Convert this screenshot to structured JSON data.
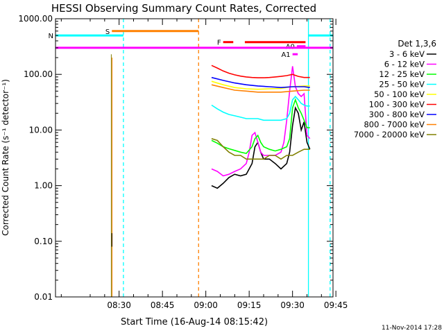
{
  "chart_data": {
    "type": "line",
    "title": "HESSI Observing Summary Count Rates, Corrected",
    "xlabel": "Start Time (16-Aug-14 08:15:42)",
    "ylabel": "Corrected Count Rate (s⁻¹ detector⁻¹)",
    "yscale": "log",
    "ylim": [
      0.01,
      1000
    ],
    "xlim_minutes": [
      8.0,
      104.0
    ],
    "yticks": [
      {
        "value": 0.01,
        "label": "0.01"
      },
      {
        "value": 0.1,
        "label": "0.10"
      },
      {
        "value": 1,
        "label": "1.00"
      },
      {
        "value": 10,
        "label": "10.00"
      },
      {
        "value": 100,
        "label": "100.00"
      },
      {
        "value": 1000,
        "label": "1000.00"
      }
    ],
    "xticks": [
      {
        "value": 30,
        "label": "08:30"
      },
      {
        "value": 45,
        "label": "08:45"
      },
      {
        "value": 60,
        "label": "09:00"
      },
      {
        "value": 75,
        "label": "09:15"
      },
      {
        "value": 90,
        "label": "09:30"
      },
      {
        "value": 105,
        "label": "09:45"
      }
    ],
    "legend": {
      "title": "Det 1,3,6",
      "position": "right"
    },
    "series": [
      {
        "name": "3 - 6 keV",
        "color": "#000000",
        "x": [
          62,
          64,
          66,
          68,
          70,
          72,
          74,
          76,
          77,
          78,
          79,
          80,
          82,
          84,
          86,
          88,
          89,
          90,
          91,
          92,
          93,
          94,
          95,
          96
        ],
        "y": [
          1.0,
          0.9,
          1.1,
          1.4,
          1.6,
          1.5,
          1.6,
          2.5,
          5.0,
          6.0,
          4.0,
          3.0,
          3.0,
          2.5,
          2.0,
          2.5,
          4.0,
          12.0,
          25.0,
          20.0,
          10.0,
          14.0,
          6.0,
          4.5
        ]
      },
      {
        "name": "6 - 12 keV",
        "color": "#ff00ff",
        "x": [
          62,
          64,
          66,
          68,
          70,
          72,
          74,
          75,
          76,
          77,
          78,
          79,
          80,
          82,
          84,
          86,
          87,
          88,
          89,
          90,
          91,
          92,
          93,
          94,
          95,
          96
        ],
        "y": [
          2.0,
          1.8,
          1.5,
          1.6,
          1.8,
          2.0,
          2.5,
          4.0,
          8.0,
          9.0,
          6.0,
          4.0,
          3.5,
          3.5,
          3.5,
          4.0,
          6.0,
          15.0,
          50.0,
          140.0,
          60.0,
          45.0,
          40.0,
          45.0,
          8.0,
          7.0
        ]
      },
      {
        "name": "12 - 25 keV",
        "color": "#00ff00",
        "x": [
          62,
          64,
          66,
          68,
          70,
          72,
          74,
          76,
          77,
          78,
          79,
          80,
          82,
          84,
          86,
          88,
          89,
          90,
          91,
          92,
          93,
          94,
          95,
          96
        ],
        "y": [
          6.5,
          5.8,
          5.0,
          4.6,
          4.3,
          4.0,
          3.8,
          5.0,
          7.0,
          8.0,
          6.0,
          5.0,
          4.5,
          4.2,
          4.5,
          5.0,
          7.0,
          25.0,
          35.0,
          25.0,
          20.0,
          15.0,
          11.0,
          11.0
        ]
      },
      {
        "name": "25 - 50 keV",
        "color": "#00ffff",
        "x": [
          62,
          64,
          66,
          68,
          70,
          72,
          74,
          76,
          78,
          80,
          82,
          84,
          86,
          88,
          89,
          90,
          91,
          92,
          93,
          94,
          95,
          96
        ],
        "y": [
          28,
          24,
          21,
          19,
          18,
          17,
          16,
          16,
          16,
          15,
          15,
          15,
          15,
          16,
          20,
          35,
          40,
          35,
          30,
          28,
          27,
          27
        ]
      },
      {
        "name": "50 - 100 keV",
        "color": "#ffff00",
        "x": [
          62,
          66,
          70,
          74,
          78,
          82,
          86,
          90,
          94,
          96
        ],
        "y": [
          75,
          65,
          58,
          55,
          54,
          55,
          56,
          60,
          62,
          62
        ]
      },
      {
        "name": "100 - 300 keV",
        "color": "#ff0000",
        "x": [
          62,
          64,
          66,
          68,
          70,
          72,
          74,
          76,
          78,
          80,
          82,
          84,
          86,
          88,
          90,
          92,
          94,
          96
        ],
        "y": [
          145,
          130,
          115,
          105,
          98,
          93,
          90,
          88,
          87,
          87,
          88,
          90,
          92,
          95,
          100,
          92,
          88,
          88
        ]
      },
      {
        "name": "300 - 800 keV",
        "color": "#0000ff",
        "x": [
          62,
          66,
          70,
          74,
          78,
          82,
          86,
          90,
          94,
          96
        ],
        "y": [
          88,
          78,
          70,
          65,
          62,
          60,
          58,
          60,
          60,
          58
        ]
      },
      {
        "name": "800 - 7000 keV",
        "color": "#ff8000",
        "x": [
          62,
          66,
          70,
          74,
          78,
          82,
          86,
          90,
          94,
          96
        ],
        "y": [
          65,
          58,
          52,
          50,
          48,
          48,
          48,
          50,
          52,
          52
        ]
      },
      {
        "name": "7000 - 20000 keV",
        "color": "#808000",
        "x": [
          62,
          64,
          66,
          68,
          70,
          72,
          74,
          76,
          78,
          80,
          82,
          84,
          86,
          88,
          90,
          92,
          94,
          96
        ],
        "y": [
          7.0,
          6.5,
          5.0,
          4.0,
          3.5,
          3.5,
          3.0,
          3.0,
          3.0,
          3.0,
          3.5,
          3.5,
          3.0,
          3.5,
          3.5,
          4.0,
          4.5,
          4.5
        ]
      }
    ],
    "flag_bars": [
      {
        "label": "S",
        "color": "#ff8000",
        "x_start": 27.5,
        "x_end": 57.5,
        "y": 600
      },
      {
        "label": "N",
        "color": "#00ffff",
        "x_start": 8.0,
        "x_end": 31.5,
        "y": 500
      },
      {
        "label": "",
        "color": "#00ffff",
        "x_start": 95.5,
        "x_end": 104.0,
        "y": 500
      },
      {
        "label": "F",
        "color": "#ff0000",
        "x_start": 66.0,
        "x_end": 69.5,
        "y": 380
      },
      {
        "label": "",
        "color": "#ff0000",
        "x_start": 73.5,
        "x_end": 94.5,
        "y": 380
      },
      {
        "label": "A0",
        "color": "#ff00ff",
        "x_start": 91.5,
        "x_end": 94.5,
        "y": 320
      },
      {
        "label": "A1",
        "color": "#ff00ff",
        "x_start": 90.0,
        "x_end": 91.8,
        "y": 230
      },
      {
        "label": "",
        "color": "#ff00ff",
        "x_start": 8.0,
        "x_end": 104.0,
        "y": 300
      }
    ],
    "vlines": [
      {
        "x": 31.5,
        "color": "#00ffff",
        "style": "dashed"
      },
      {
        "x": 57.5,
        "color": "#ff8000",
        "style": "dashed"
      },
      {
        "x": 95.5,
        "color": "#00ffff",
        "style": "solid"
      },
      {
        "x": 103.0,
        "color": "#00ffff",
        "style": "dashed"
      }
    ]
  },
  "footer": {
    "date_stamp": "11-Nov-2014 17:28"
  }
}
